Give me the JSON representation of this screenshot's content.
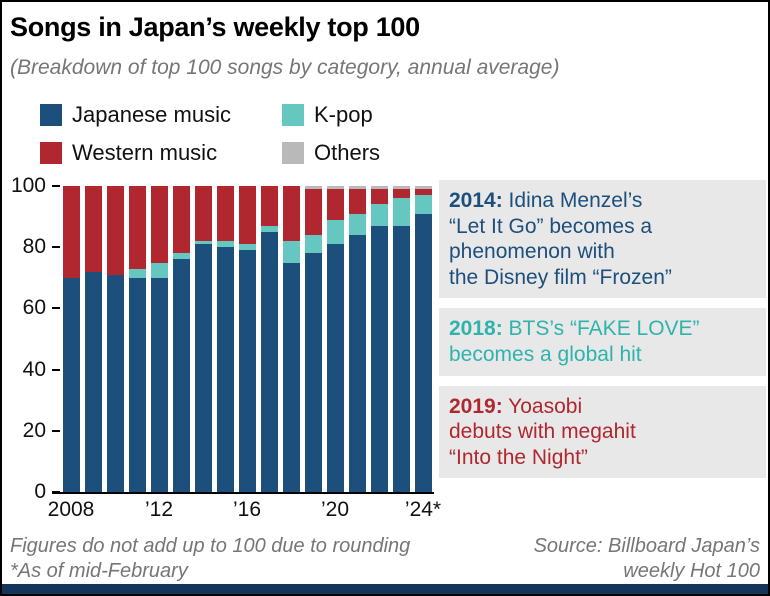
{
  "header": {
    "title": "Songs in Japan’s weekly top 100",
    "subtitle": "(Breakdown of top 100 songs by category, annual average)"
  },
  "legend": {
    "items": [
      {
        "label": "Japanese music",
        "color": "#1d4f7c"
      },
      {
        "label": "K-pop",
        "color": "#66c7c1"
      },
      {
        "label": "Western music",
        "color": "#b02730"
      },
      {
        "label": "Others",
        "color": "#b9b9b9"
      }
    ]
  },
  "chart_data": {
    "type": "bar",
    "stacked": true,
    "title": "Songs in Japan’s weekly top 100",
    "subtitle": "(Breakdown of top 100 songs by category, annual average)",
    "categories": [
      2008,
      2009,
      2010,
      2011,
      2012,
      2013,
      2014,
      2015,
      2016,
      2017,
      2018,
      2019,
      2020,
      2021,
      2022,
      2023,
      2024
    ],
    "x_tick_labels": [
      "2008",
      "’12",
      "’16",
      "’20",
      "’24*"
    ],
    "x_tick_positions": [
      0,
      4,
      8,
      12,
      16
    ],
    "y_ticks": [
      0,
      20,
      40,
      60,
      80,
      100
    ],
    "ylim": [
      0,
      100
    ],
    "grid": false,
    "legend_position": "top",
    "series": [
      {
        "name": "Japanese music",
        "color": "#1d4f7c",
        "values": [
          70,
          72,
          71,
          70,
          70,
          76,
          81,
          80,
          79,
          85,
          75,
          78,
          81,
          84,
          87,
          87,
          91
        ]
      },
      {
        "name": "K-pop",
        "color": "#66c7c1",
        "values": [
          0,
          0,
          0,
          3,
          5,
          2,
          1,
          2,
          2,
          2,
          7,
          6,
          8,
          7,
          7,
          9,
          6
        ]
      },
      {
        "name": "Western music",
        "color": "#b02730",
        "values": [
          30,
          28,
          29,
          27,
          25,
          22,
          18,
          18,
          19,
          13,
          18,
          15,
          10,
          8,
          5,
          3,
          2
        ]
      },
      {
        "name": "Others",
        "color": "#b9b9b9",
        "values": [
          0,
          0,
          0,
          0,
          0,
          0,
          0,
          0,
          0,
          0,
          0,
          1,
          1,
          1,
          1,
          1,
          1
        ]
      }
    ]
  },
  "annotations": [
    {
      "year": "2014:",
      "text": " Idina Menzel’s\n“Let It Go” becomes a\nphenomenon with\nthe Disney film “Frozen”",
      "color": "#1d4f7c"
    },
    {
      "year": "2018:",
      "text": " BTS’s “FAKE LOVE”\nbecomes a global hit",
      "color": "#2fb3ad"
    },
    {
      "year": "2019:",
      "text": " Yoasobi\ndebuts with megahit\n“Into the Night”",
      "color": "#b02730"
    }
  ],
  "footer": {
    "note": "Figures do not add up to 100 due to rounding\n*As of mid-February",
    "source": "Source: Billboard Japan’s\nweekly Hot 100"
  }
}
